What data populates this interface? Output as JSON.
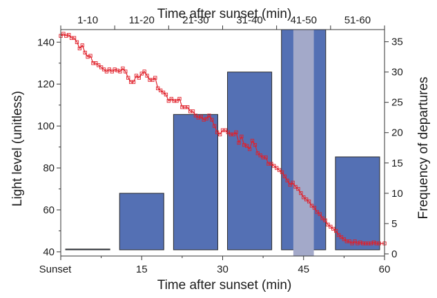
{
  "chart_data": {
    "type": "bar",
    "top_axis": {
      "title": "Time after sunset (min)",
      "categories": [
        "1-10",
        "11-20",
        "21-30",
        "31-40",
        "41-50",
        "51-60"
      ]
    },
    "bottom_axis": {
      "title": "Time after sunset (min)",
      "ticks": [
        0,
        15,
        30,
        45,
        60
      ],
      "tick_labels": [
        "Sunset",
        "15",
        "30",
        "45",
        "60"
      ],
      "range": [
        0,
        60
      ]
    },
    "left_axis": {
      "title": "Light level (unitless)",
      "ticks": [
        40,
        60,
        80,
        100,
        120,
        140
      ],
      "range": [
        38,
        146
      ]
    },
    "right_axis": {
      "title": "Frequency of departures",
      "ticks": [
        0,
        5,
        10,
        15,
        20,
        25,
        30,
        35
      ],
      "range": [
        -0.35,
        37.0
      ]
    },
    "series": [
      {
        "type": "bar",
        "axis": "right",
        "color": "#5470b4",
        "categories": [
          "1-10",
          "11-20",
          "21-30",
          "31-40",
          "41-50",
          "51-60"
        ],
        "values": [
          0.8,
          10,
          23,
          30,
          37,
          16
        ]
      },
      {
        "type": "line",
        "axis": "left",
        "color": "#e0202a",
        "marker": "square",
        "points": [
          [
            0,
            143
          ],
          [
            0.5,
            144
          ],
          [
            1,
            143
          ],
          [
            1.5,
            143.5
          ],
          [
            2,
            142
          ],
          [
            2.5,
            142
          ],
          [
            3,
            140
          ],
          [
            3.5,
            137
          ],
          [
            4,
            138.5
          ],
          [
            4.5,
            135
          ],
          [
            5,
            133
          ],
          [
            5.5,
            133.5
          ],
          [
            6,
            130
          ],
          [
            6.5,
            130
          ],
          [
            7,
            129
          ],
          [
            7.5,
            128
          ],
          [
            8,
            127
          ],
          [
            8.5,
            126
          ],
          [
            9,
            127
          ],
          [
            9.5,
            126
          ],
          [
            10,
            127
          ],
          [
            10.5,
            126.5
          ],
          [
            11,
            126
          ],
          [
            11.5,
            127.5
          ],
          [
            12,
            126
          ],
          [
            12.5,
            123
          ],
          [
            13,
            121
          ],
          [
            13.5,
            121
          ],
          [
            14,
            124
          ],
          [
            14.5,
            123
          ],
          [
            15,
            125
          ],
          [
            15.5,
            126
          ],
          [
            16,
            124
          ],
          [
            16.5,
            122
          ],
          [
            17,
            122
          ],
          [
            17.5,
            123
          ],
          [
            18,
            118
          ],
          [
            18.5,
            117
          ],
          [
            19,
            116
          ],
          [
            19.5,
            115
          ],
          [
            20,
            112
          ],
          [
            20.5,
            113
          ],
          [
            21,
            112
          ],
          [
            21.5,
            112
          ],
          [
            22,
            113
          ],
          [
            22.5,
            109
          ],
          [
            23,
            109
          ],
          [
            23.5,
            109
          ],
          [
            24,
            107
          ],
          [
            24.5,
            107
          ],
          [
            25,
            105
          ],
          [
            25.5,
            104
          ],
          [
            26,
            104.5
          ],
          [
            26.5,
            103
          ],
          [
            27,
            103.5
          ],
          [
            27.5,
            105
          ],
          [
            28,
            103
          ],
          [
            28.5,
            100
          ],
          [
            29,
            97
          ],
          [
            29.5,
            96
          ],
          [
            30,
            98
          ],
          [
            30.5,
            98
          ],
          [
            31,
            97
          ],
          [
            31.5,
            96
          ],
          [
            32,
            96
          ],
          [
            32.5,
            97
          ],
          [
            33,
            92
          ],
          [
            33.5,
            95
          ],
          [
            34,
            91
          ],
          [
            34.5,
            90.5
          ],
          [
            35,
            89
          ],
          [
            35.5,
            93
          ],
          [
            36,
            91
          ],
          [
            36.5,
            87
          ],
          [
            37,
            86
          ],
          [
            37.5,
            85
          ],
          [
            38,
            85
          ],
          [
            38.5,
            82
          ],
          [
            39,
            82
          ],
          [
            39.5,
            81
          ],
          [
            40,
            80
          ],
          [
            40.5,
            79
          ],
          [
            41,
            78
          ],
          [
            41.5,
            76
          ],
          [
            42,
            74
          ],
          [
            42.5,
            72
          ],
          [
            43,
            73
          ],
          [
            43.5,
            71
          ],
          [
            44,
            70
          ],
          [
            44.5,
            68
          ],
          [
            45,
            66
          ],
          [
            45.5,
            65
          ],
          [
            46,
            64
          ],
          [
            46.5,
            62
          ],
          [
            47,
            61
          ],
          [
            47.5,
            59
          ],
          [
            48,
            58
          ],
          [
            48.5,
            56
          ],
          [
            49,
            55
          ],
          [
            49.5,
            53
          ],
          [
            50,
            52
          ],
          [
            50.5,
            51
          ],
          [
            51,
            50
          ],
          [
            51.5,
            48
          ],
          [
            52,
            47
          ],
          [
            52.5,
            46
          ],
          [
            53,
            45
          ],
          [
            53.5,
            45
          ],
          [
            54,
            44
          ],
          [
            54.5,
            45
          ],
          [
            55,
            44
          ],
          [
            55.5,
            44.5
          ],
          [
            56,
            44
          ],
          [
            56.5,
            44
          ],
          [
            57,
            44
          ],
          [
            57.5,
            44
          ],
          [
            58,
            44.5
          ],
          [
            58.5,
            44
          ],
          [
            59,
            44
          ],
          [
            60,
            44
          ]
        ]
      }
    ],
    "highlight_band": {
      "x_range": [
        43.1,
        46.9
      ],
      "color": "#a3a9c9"
    }
  }
}
